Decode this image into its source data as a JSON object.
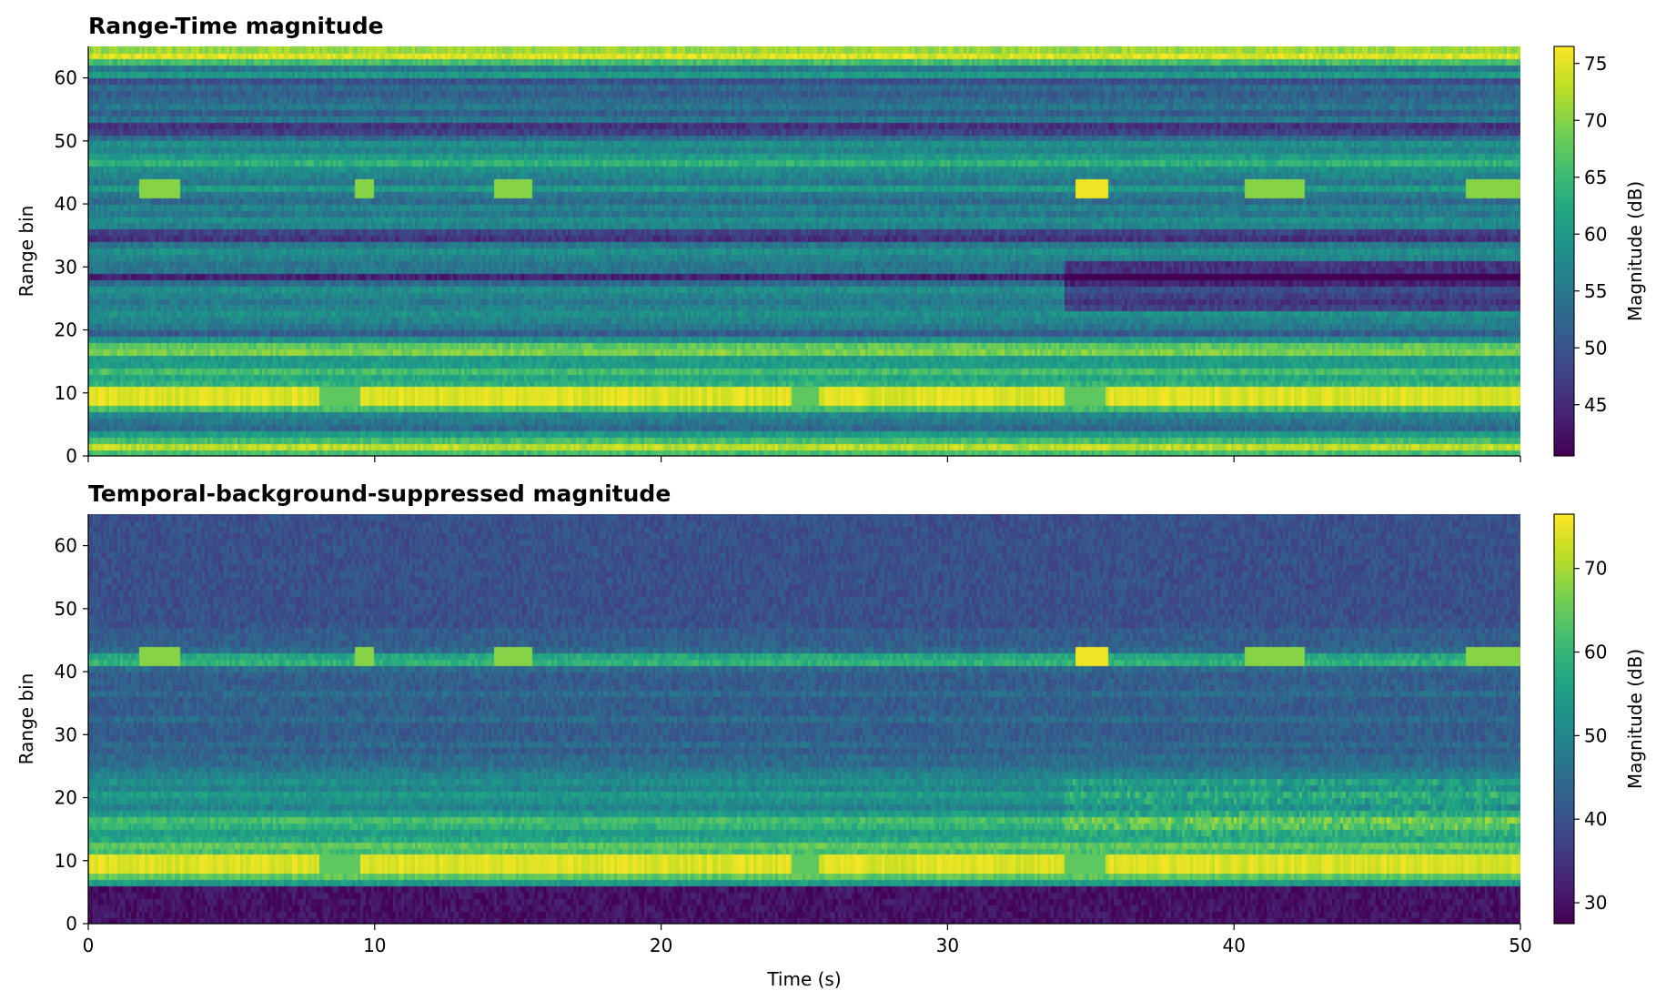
{
  "chart_data": [
    {
      "type": "heatmap",
      "title": "Range-Time magnitude",
      "xlabel": "",
      "ylabel": "Range bin",
      "xlim": [
        0,
        50
      ],
      "ylim": [
        0,
        65
      ],
      "x_ticks": [
        "0",
        "10",
        "20",
        "30",
        "40",
        "50"
      ],
      "y_ticks": [
        "0",
        "10",
        "20",
        "30",
        "40",
        "50",
        "60"
      ],
      "colormap": "viridis",
      "colorbar": {
        "label": "Magnitude (dB)",
        "range": [
          40.5,
          76.5
        ],
        "ticks": [
          "45",
          "50",
          "55",
          "60",
          "65",
          "70",
          "75"
        ]
      }
    },
    {
      "type": "heatmap",
      "title": "Temporal-background-suppressed magnitude",
      "xlabel": "Time (s)",
      "ylabel": "Range bin",
      "xlim": [
        0,
        50
      ],
      "ylim": [
        0,
        65
      ],
      "x_ticks": [
        "0",
        "10",
        "20",
        "30",
        "40",
        "50"
      ],
      "y_ticks": [
        "0",
        "10",
        "20",
        "30",
        "40",
        "50",
        "60"
      ],
      "colormap": "viridis",
      "colorbar": {
        "label": "Magnitude (dB)",
        "range": [
          27.5,
          76.5
        ],
        "ticks": [
          "30",
          "40",
          "50",
          "60",
          "70"
        ]
      }
    }
  ]
}
